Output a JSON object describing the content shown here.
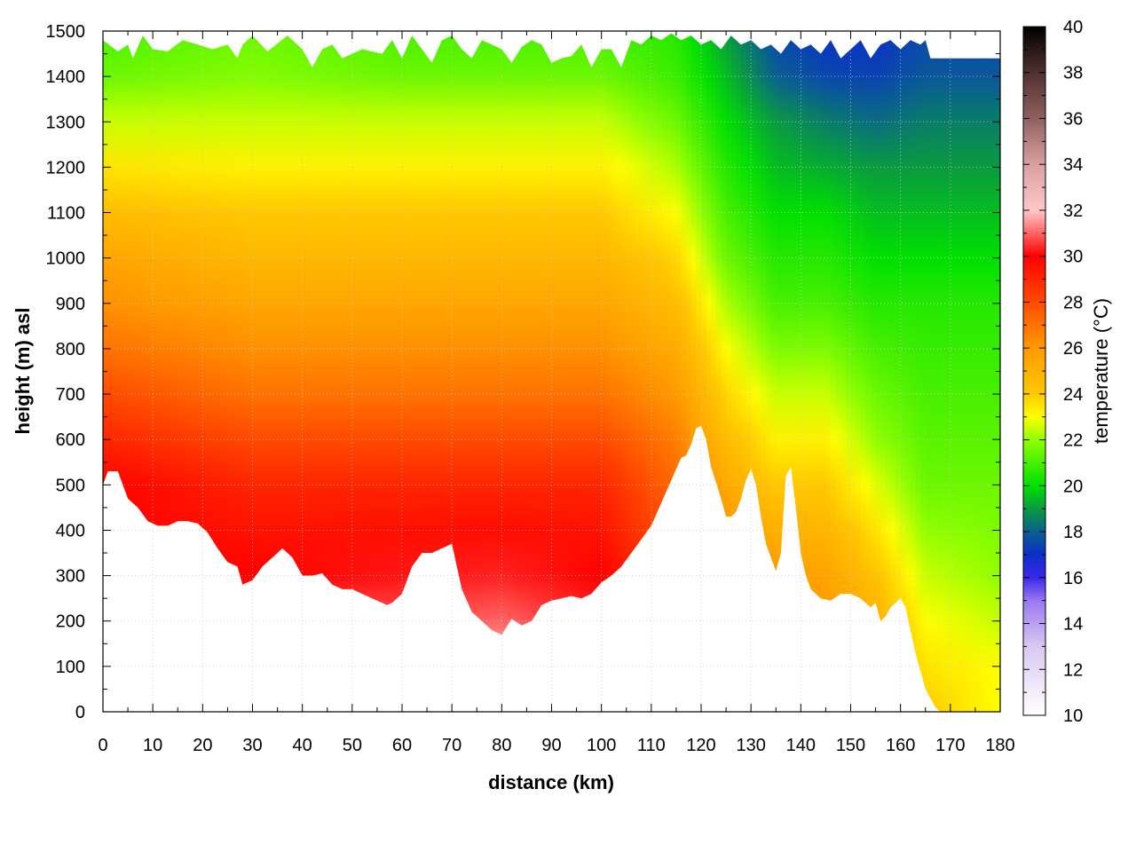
{
  "chart_data": {
    "type": "heatmap",
    "title": "",
    "xlabel": "distance (km)",
    "ylabel": "height (m) asl",
    "colorbar_label": "temperature (°C)",
    "xlim": [
      0,
      180
    ],
    "ylim": [
      0,
      1500
    ],
    "clim": [
      10,
      40
    ],
    "x_ticks": [
      "0",
      "10",
      "20",
      "30",
      "40",
      "50",
      "60",
      "70",
      "80",
      "90",
      "100",
      "110",
      "120",
      "130",
      "140",
      "150",
      "160",
      "170",
      "180"
    ],
    "y_ticks": [
      "0",
      "100",
      "200",
      "300",
      "400",
      "500",
      "600",
      "700",
      "800",
      "900",
      "1000",
      "1100",
      "1200",
      "1300",
      "1400",
      "1500"
    ],
    "colorbar_ticks": [
      "10",
      "12",
      "14",
      "16",
      "18",
      "20",
      "22",
      "24",
      "26",
      "28",
      "30",
      "32",
      "34",
      "36",
      "38",
      "40"
    ],
    "grid": true,
    "colorscale": [
      [
        10,
        "#ffffff"
      ],
      [
        13,
        "#d8c8f0"
      ],
      [
        15,
        "#9a78f0"
      ],
      [
        16,
        "#3a28e8"
      ],
      [
        17,
        "#0a30c8"
      ],
      [
        18,
        "#0a6090"
      ],
      [
        19,
        "#0a9a40"
      ],
      [
        20,
        "#00e000"
      ],
      [
        22,
        "#90ff00"
      ],
      [
        23,
        "#ffff00"
      ],
      [
        24,
        "#ffc800"
      ],
      [
        26,
        "#ff9a00"
      ],
      [
        28,
        "#ff4a00"
      ],
      [
        30,
        "#ff0000"
      ],
      [
        32,
        "#ffc8c8"
      ],
      [
        34,
        "#d8a0a0"
      ],
      [
        36,
        "#906060"
      ],
      [
        38,
        "#503030"
      ],
      [
        40,
        "#000000"
      ]
    ],
    "terrain": {
      "x": [
        0,
        1,
        3,
        5,
        7,
        9,
        11,
        13,
        15,
        17,
        19,
        21,
        23,
        25,
        27,
        28,
        30,
        32,
        34,
        36,
        38,
        40,
        42,
        44,
        46,
        48,
        50,
        52,
        54,
        56,
        57,
        58,
        60,
        62,
        64,
        66,
        68,
        70,
        72,
        74,
        76,
        78,
        80,
        82,
        84,
        86,
        88,
        90,
        92,
        94,
        96,
        98,
        100,
        102,
        104,
        106,
        108,
        110,
        112,
        114,
        116,
        117,
        118,
        119,
        120,
        121,
        122,
        124,
        125,
        126,
        127,
        128,
        129,
        130,
        131,
        132,
        133,
        134,
        135,
        136,
        137,
        138,
        139,
        140,
        141,
        142,
        144,
        146,
        148,
        150,
        152,
        154,
        155,
        156,
        157,
        158,
        160,
        161,
        162,
        163,
        164,
        165,
        166,
        167,
        168,
        170,
        180
      ],
      "height": [
        500,
        530,
        530,
        470,
        450,
        420,
        410,
        410,
        420,
        420,
        415,
        395,
        360,
        330,
        320,
        280,
        290,
        320,
        340,
        360,
        340,
        300,
        300,
        305,
        280,
        270,
        270,
        260,
        250,
        240,
        235,
        240,
        260,
        320,
        350,
        350,
        360,
        370,
        270,
        220,
        200,
        180,
        170,
        205,
        190,
        200,
        235,
        245,
        250,
        255,
        250,
        260,
        285,
        300,
        320,
        350,
        380,
        410,
        460,
        510,
        560,
        565,
        590,
        625,
        630,
        600,
        540,
        470,
        430,
        430,
        440,
        470,
        510,
        535,
        500,
        430,
        370,
        340,
        310,
        350,
        520,
        540,
        450,
        350,
        300,
        270,
        250,
        245,
        260,
        260,
        250,
        230,
        240,
        200,
        210,
        230,
        250,
        230,
        180,
        130,
        90,
        50,
        30,
        10,
        0,
        0,
        0
      ]
    },
    "top_boundary": {
      "x": [
        0,
        3,
        5,
        6,
        8,
        10,
        13,
        16,
        19,
        22,
        25,
        27,
        28,
        30,
        33,
        37,
        40,
        42,
        44,
        46,
        48,
        52,
        56,
        58,
        60,
        62,
        64,
        66,
        68,
        70,
        72,
        74,
        76,
        78,
        80,
        82,
        84,
        86,
        88,
        90,
        92,
        94,
        96,
        98,
        100,
        102,
        104,
        106,
        108,
        110,
        112,
        114,
        116,
        118,
        120,
        122,
        124,
        126,
        128,
        130,
        132,
        134,
        136,
        138,
        140,
        142,
        144,
        146,
        148,
        150,
        152,
        154,
        156,
        158,
        160,
        162,
        164,
        165,
        166,
        180
      ],
      "height": [
        1480,
        1455,
        1470,
        1440,
        1490,
        1460,
        1455,
        1480,
        1470,
        1460,
        1470,
        1440,
        1470,
        1490,
        1455,
        1490,
        1460,
        1420,
        1460,
        1470,
        1440,
        1460,
        1450,
        1480,
        1440,
        1490,
        1460,
        1430,
        1480,
        1490,
        1460,
        1440,
        1480,
        1470,
        1460,
        1430,
        1465,
        1480,
        1470,
        1430,
        1440,
        1445,
        1470,
        1420,
        1460,
        1460,
        1420,
        1480,
        1470,
        1490,
        1480,
        1495,
        1480,
        1490,
        1470,
        1480,
        1460,
        1490,
        1470,
        1480,
        1460,
        1470,
        1450,
        1480,
        1460,
        1470,
        1450,
        1480,
        1440,
        1460,
        1480,
        1440,
        1470,
        1480,
        1460,
        1480,
        1470,
        1480,
        1440,
        1440
      ]
    },
    "temperature_profiles": [
      {
        "distance": 0,
        "heights": [
          0,
          500,
          800,
          1000,
          1200,
          1300,
          1400,
          1450
        ],
        "temps": [
          30,
          30,
          27,
          25.5,
          23.5,
          22.5,
          21.5,
          21
        ]
      },
      {
        "distance": 30,
        "heights": [
          0,
          300,
          500,
          700,
          900,
          1100,
          1300,
          1450
        ],
        "temps": [
          32,
          30,
          29,
          27,
          25.5,
          24,
          22.5,
          21.5
        ]
      },
      {
        "distance": 60,
        "heights": [
          0,
          250,
          500,
          700,
          900,
          1100,
          1300,
          1450
        ],
        "temps": [
          32,
          30.5,
          29,
          27,
          25.5,
          24,
          22.5,
          21
        ]
      },
      {
        "distance": 80,
        "heights": [
          0,
          200,
          500,
          700,
          900,
          1100,
          1300,
          1450
        ],
        "temps": [
          33,
          31,
          29,
          27,
          25.5,
          24,
          22.5,
          21
        ]
      },
      {
        "distance": 100,
        "heights": [
          0,
          300,
          500,
          700,
          900,
          1100,
          1300,
          1450
        ],
        "temps": [
          31,
          30,
          29,
          27,
          25.5,
          24,
          22.5,
          21
        ]
      },
      {
        "distance": 115,
        "heights": [
          0,
          560,
          700,
          900,
          1100,
          1300,
          1450
        ],
        "temps": [
          29,
          27,
          26,
          24.5,
          23,
          21.5,
          20.5
        ]
      },
      {
        "distance": 125,
        "heights": [
          0,
          430,
          600,
          800,
          1000,
          1200,
          1400,
          1450
        ],
        "temps": [
          27,
          26,
          24.5,
          23,
          21.5,
          20.5,
          19.5,
          19
        ]
      },
      {
        "distance": 135,
        "heights": [
          0,
          310,
          500,
          700,
          900,
          1100,
          1300,
          1450
        ],
        "temps": [
          26,
          26,
          24,
          22.5,
          21,
          20,
          19,
          17.5
        ]
      },
      {
        "distance": 145,
        "heights": [
          0,
          250,
          500,
          700,
          900,
          1100,
          1300,
          1450
        ],
        "temps": [
          26,
          26,
          24,
          22.5,
          21,
          20,
          18.5,
          17
        ]
      },
      {
        "distance": 155,
        "heights": [
          0,
          200,
          400,
          600,
          800,
          1000,
          1200,
          1450
        ],
        "temps": [
          25,
          25,
          23.5,
          22,
          21,
          20,
          19,
          17
        ]
      },
      {
        "distance": 165,
        "heights": [
          0,
          100,
          300,
          500,
          700,
          900,
          1100,
          1300,
          1450
        ],
        "temps": [
          24,
          23.5,
          22.5,
          21.5,
          21,
          20.5,
          19.5,
          18.5,
          17.5
        ]
      },
      {
        "distance": 180,
        "heights": [
          0,
          100,
          300,
          500,
          700,
          900,
          1100,
          1300,
          1450
        ],
        "temps": [
          23,
          23,
          22,
          21.5,
          21,
          20.5,
          19.5,
          18.5,
          17.5
        ]
      }
    ]
  }
}
